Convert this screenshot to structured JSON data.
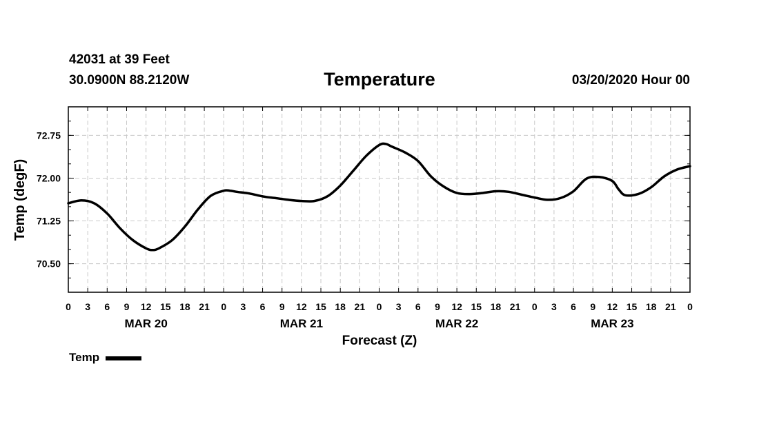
{
  "header": {
    "station": "42031 at 39 Feet",
    "coords": "30.0900N 88.2120W",
    "title": "Temperature",
    "run_time": "03/20/2020 Hour 00"
  },
  "legend": {
    "label": "Temp",
    "color": "#000000"
  },
  "chart_data": {
    "type": "line",
    "title": "Temperature",
    "xlabel": "Forecast (Z)",
    "ylabel": "Temp (degF)",
    "xlim_hours": [
      0,
      96
    ],
    "ylim": [
      70,
      73.25
    ],
    "y_ticks": [
      70.5,
      71.25,
      72.0,
      72.75
    ],
    "y_tick_labels": [
      "70.50",
      "71.25",
      "72.00",
      "72.75"
    ],
    "x_tick_hours": [
      0,
      3,
      6,
      9,
      12,
      15,
      18,
      21,
      24,
      27,
      30,
      33,
      36,
      39,
      42,
      45,
      48,
      51,
      54,
      57,
      60,
      63,
      66,
      69,
      72,
      75,
      78,
      81,
      84,
      87,
      90,
      93,
      96
    ],
    "x_tick_labels": [
      "0",
      "3",
      "6",
      "9",
      "12",
      "15",
      "18",
      "21",
      "0",
      "3",
      "6",
      "9",
      "12",
      "15",
      "18",
      "21",
      "0",
      "3",
      "6",
      "9",
      "12",
      "15",
      "18",
      "21",
      "0",
      "3",
      "6",
      "9",
      "12",
      "15",
      "18",
      "21",
      "0"
    ],
    "date_labels": [
      {
        "label": "MAR 20",
        "hour": 12
      },
      {
        "label": "MAR 21",
        "hour": 36
      },
      {
        "label": "MAR 22",
        "hour": 60
      },
      {
        "label": "MAR 23",
        "hour": 84
      }
    ],
    "grid": true,
    "series": [
      {
        "name": "Temp",
        "x": [
          0,
          2,
          4,
          6,
          8,
          10,
          12,
          13,
          14,
          16,
          18,
          20,
          22,
          24,
          25,
          26,
          28,
          30,
          32,
          34,
          36,
          38,
          40,
          42,
          44,
          46,
          48,
          49,
          50,
          52,
          54,
          56,
          58,
          60,
          62,
          64,
          66,
          68,
          70,
          72,
          74,
          76,
          78,
          80,
          82,
          84,
          85,
          86,
          88,
          90,
          92,
          94,
          96
        ],
        "values": [
          71.56,
          71.61,
          71.56,
          71.38,
          71.12,
          70.91,
          70.77,
          70.74,
          70.77,
          70.91,
          71.15,
          71.45,
          71.69,
          71.78,
          71.78,
          71.76,
          71.73,
          71.68,
          71.65,
          71.62,
          71.6,
          71.6,
          71.68,
          71.87,
          72.13,
          72.39,
          72.58,
          72.6,
          72.55,
          72.45,
          72.3,
          72.03,
          71.85,
          71.74,
          71.72,
          71.74,
          71.77,
          71.76,
          71.71,
          71.66,
          71.62,
          71.65,
          71.77,
          71.99,
          72.02,
          71.95,
          71.8,
          71.7,
          71.72,
          71.84,
          72.03,
          72.15,
          72.21
        ]
      }
    ]
  }
}
